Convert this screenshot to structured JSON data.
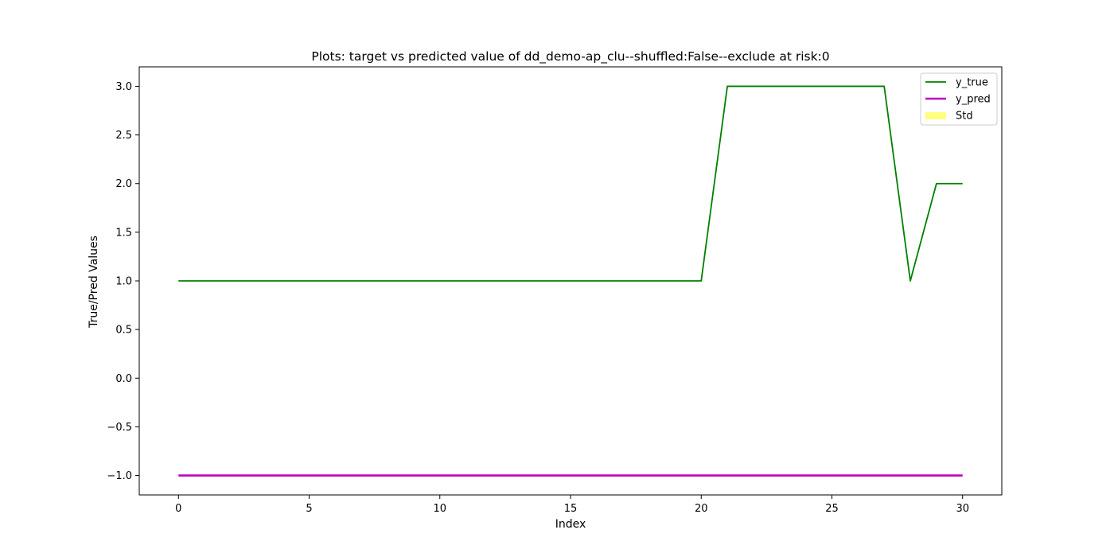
{
  "chart_data": {
    "type": "line",
    "title": "Plots: target vs predicted value of dd_demo-ap_clu--shuffled:False--exclude at risk:0",
    "xlabel": "Index",
    "ylabel": "True/Pred Values",
    "xlim": [
      -1.5,
      31.5
    ],
    "ylim": [
      -1.2,
      3.2
    ],
    "x_ticks": [
      0,
      5,
      10,
      15,
      20,
      25,
      30
    ],
    "x_tick_labels": [
      "0",
      "5",
      "10",
      "15",
      "20",
      "25",
      "30"
    ],
    "y_ticks": [
      -1.0,
      -0.5,
      0.0,
      0.5,
      1.0,
      1.5,
      2.0,
      2.5,
      3.0
    ],
    "y_tick_labels": [
      "−1.0",
      "−0.5",
      "0.0",
      "0.5",
      "1.0",
      "1.5",
      "2.0",
      "2.5",
      "3.0"
    ],
    "grid": false,
    "legend_position": "top-right",
    "x": [
      0,
      1,
      2,
      3,
      4,
      5,
      6,
      7,
      8,
      9,
      10,
      11,
      12,
      13,
      14,
      15,
      16,
      17,
      18,
      19,
      20,
      21,
      22,
      23,
      24,
      25,
      26,
      27,
      28,
      29,
      30
    ],
    "series": [
      {
        "name": "y_true",
        "kind": "line",
        "color": "#008000",
        "values": [
          1,
          1,
          1,
          1,
          1,
          1,
          1,
          1,
          1,
          1,
          1,
          1,
          1,
          1,
          1,
          1,
          1,
          1,
          1,
          1,
          1,
          3,
          3,
          3,
          3,
          3,
          3,
          3,
          1,
          2,
          2
        ]
      },
      {
        "name": "y_pred",
        "kind": "line",
        "color": "#bf00bf",
        "values": [
          -1,
          -1,
          -1,
          -1,
          -1,
          -1,
          -1,
          -1,
          -1,
          -1,
          -1,
          -1,
          -1,
          -1,
          -1,
          -1,
          -1,
          -1,
          -1,
          -1,
          -1,
          -1,
          -1,
          -1,
          -1,
          -1,
          -1,
          -1,
          -1,
          -1,
          -1
        ]
      },
      {
        "name": "Std",
        "kind": "band",
        "color": "#ffff00",
        "upper": [
          -1,
          -1,
          -1,
          -1,
          -1,
          -1,
          -1,
          -1,
          -1,
          -1,
          -1,
          -1,
          -1,
          -1,
          -1,
          -1,
          -1,
          -1,
          -1,
          -1,
          -1,
          -1,
          -1,
          -1,
          -1,
          -1,
          -1,
          -1,
          -1,
          -1,
          -1
        ],
        "lower": [
          -1,
          -1,
          -1,
          -1,
          -1,
          -1,
          -1,
          -1,
          -1,
          -1,
          -1,
          -1,
          -1,
          -1,
          -1,
          -1,
          -1,
          -1,
          -1,
          -1,
          -1,
          -1,
          -1,
          -1,
          -1,
          -1,
          -1,
          -1,
          -1,
          -1,
          -1
        ]
      }
    ]
  }
}
